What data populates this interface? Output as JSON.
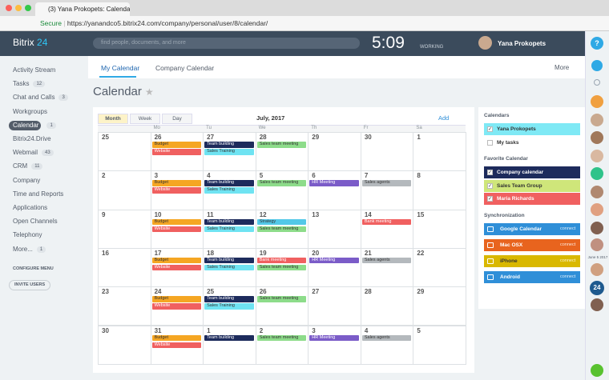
{
  "browser": {
    "tab_title": "(3) Yana Prokopets: Calendar",
    "secure": "Secure",
    "url": "https://yanandco5.bitrix24.com/company/personal/user/8/calendar/"
  },
  "header": {
    "logo_main": "Bitrix",
    "logo_num": "24",
    "search_placeholder": "find people, documents, and more",
    "time": "5:09",
    "status": "WORKING",
    "user": "Yana Prokopets",
    "help": "?"
  },
  "sidebar": {
    "items": [
      {
        "label": "Activity Stream"
      },
      {
        "label": "Tasks",
        "count": 12
      },
      {
        "label": "Chat and Calls",
        "count": 3
      },
      {
        "label": "Workgroups"
      },
      {
        "label": "Calendar",
        "count": 1,
        "active": true
      },
      {
        "label": "Bitrix24.Drive"
      },
      {
        "label": "Webmail",
        "count": 43
      },
      {
        "label": "CRM",
        "count": 11
      },
      {
        "label": "Company"
      },
      {
        "label": "Time and Reports"
      },
      {
        "label": "Applications"
      },
      {
        "label": "Open Channels"
      },
      {
        "label": "Telephony"
      },
      {
        "label": "More...",
        "count": 1
      }
    ],
    "configure": "CONFIGURE MENU",
    "invite": "INVITE USERS"
  },
  "tabs": [
    "My Calendar",
    "Company Calendar"
  ],
  "more": "More",
  "page_title": "Calendar",
  "calendar": {
    "views": [
      "Month",
      "Week",
      "Day"
    ],
    "period": "July, 2017",
    "add": "Add",
    "weekdays": [
      null,
      "Mo",
      "Tu",
      "We",
      "Th",
      "Fr",
      "Sa"
    ],
    "weeks": [
      {
        "days": [
          {
            "num": 25
          },
          {
            "num": 26,
            "events": [
              {
                "title": "Budget",
                "color": "#f5a623"
              },
              {
                "title": "Website",
                "color": "#f06060"
              }
            ]
          },
          {
            "num": 27,
            "events": [
              {
                "title": "Team building",
                "color": "#1d2b5c"
              },
              {
                "title": "Sales Training",
                "color": "#6fe3f2"
              }
            ]
          },
          {
            "num": 28,
            "events": [
              {
                "title": "Sales team meeting",
                "color": "#8ddc8a"
              }
            ]
          },
          {
            "num": 29
          },
          {
            "num": 30
          },
          {
            "num": 1
          }
        ]
      },
      {
        "days": [
          {
            "num": 2
          },
          {
            "num": 3,
            "events": [
              {
                "title": "Budget",
                "color": "#f5a623"
              },
              {
                "title": "Website",
                "color": "#f06060"
              }
            ]
          },
          {
            "num": 4,
            "events": [
              {
                "title": "Team building",
                "color": "#1d2b5c"
              },
              {
                "title": "Sales Training",
                "color": "#6fe3f2"
              }
            ]
          },
          {
            "num": 5,
            "events": [
              {
                "title": "Sales team meeting",
                "color": "#8ddc8a"
              }
            ]
          },
          {
            "num": 6,
            "events": [
              {
                "title": "HR Meeting",
                "color": "#7b5cc8"
              }
            ]
          },
          {
            "num": 7,
            "events": [
              {
                "title": "Sales agents",
                "color": "#b4b9bd"
              }
            ]
          },
          {
            "num": 8
          }
        ]
      },
      {
        "days": [
          {
            "num": 9
          },
          {
            "num": 10,
            "events": [
              {
                "title": "Budget",
                "color": "#f5a623"
              },
              {
                "title": "Website",
                "color": "#f06060"
              }
            ]
          },
          {
            "num": 11,
            "events": [
              {
                "title": "Team building",
                "color": "#1d2b5c"
              },
              {
                "title": "Sales Training",
                "color": "#6fe3f2"
              }
            ]
          },
          {
            "num": 12,
            "events": [
              {
                "title": "Strategy",
                "color": "#52c8e8"
              },
              {
                "title": "Sales team meeting",
                "color": "#8ddc8a"
              }
            ]
          },
          {
            "num": 13
          },
          {
            "num": 14,
            "events": [
              {
                "title": "Bank meeting",
                "color": "#f06060"
              }
            ]
          },
          {
            "num": 15
          }
        ]
      },
      {
        "days": [
          {
            "num": 16
          },
          {
            "num": 17,
            "events": [
              {
                "title": "Budget",
                "color": "#f5a623"
              },
              {
                "title": "Website",
                "color": "#f06060"
              }
            ]
          },
          {
            "num": 18,
            "events": [
              {
                "title": "Team building",
                "color": "#1d2b5c"
              },
              {
                "title": "Sales Training",
                "color": "#6fe3f2"
              }
            ]
          },
          {
            "num": 19,
            "events": [
              {
                "title": "Bank meeting",
                "color": "#f06060"
              },
              {
                "title": "Sales team meeting",
                "color": "#8ddc8a"
              }
            ]
          },
          {
            "num": 20,
            "events": [
              {
                "title": "HR Meeting",
                "color": "#7b5cc8"
              }
            ]
          },
          {
            "num": 21,
            "events": [
              {
                "title": "Sales agents",
                "color": "#b4b9bd"
              }
            ]
          },
          {
            "num": 22
          }
        ]
      },
      {
        "days": [
          {
            "num": 23
          },
          {
            "num": 24,
            "events": [
              {
                "title": "Budget",
                "color": "#f5a623"
              },
              {
                "title": "Website",
                "color": "#f06060"
              }
            ]
          },
          {
            "num": 25,
            "events": [
              {
                "title": "Team building",
                "color": "#1d2b5c"
              },
              {
                "title": "Sales Training",
                "color": "#6fe3f2"
              }
            ]
          },
          {
            "num": 26,
            "events": [
              {
                "title": "Sales team meeting",
                "color": "#8ddc8a"
              }
            ]
          },
          {
            "num": 27
          },
          {
            "num": 28
          },
          {
            "num": 29
          }
        ]
      },
      {
        "days": [
          {
            "num": 30
          },
          {
            "num": 31,
            "events": [
              {
                "title": "Budget",
                "color": "#f5a623"
              },
              {
                "title": "Website",
                "color": "#f06060"
              }
            ]
          },
          {
            "num": 1,
            "events": [
              {
                "title": "Team building",
                "color": "#1d2b5c"
              }
            ]
          },
          {
            "num": 2,
            "events": [
              {
                "title": "Sales team meeting",
                "color": "#8ddc8a"
              }
            ]
          },
          {
            "num": 3,
            "events": [
              {
                "title": "HR Meeting",
                "color": "#7b5cc8"
              }
            ]
          },
          {
            "num": 4,
            "events": [
              {
                "title": "Sales agents",
                "color": "#b4b9bd"
              }
            ]
          },
          {
            "num": 5
          }
        ]
      }
    ]
  },
  "panel": {
    "calendars_title": "Calendars",
    "calendars": [
      {
        "label": "Yana Prokopets",
        "color": "#7fe9f5",
        "checked": true
      },
      {
        "label": "My tasks",
        "checked": false
      }
    ],
    "favorite_title": "Favorite Calendar",
    "favorites": [
      {
        "label": "Company calendar",
        "color": "#1d2b5c",
        "checked": true
      },
      {
        "label": "Sales Team Group",
        "color": "#cfe67a",
        "checked": true
      },
      {
        "label": "Maria Richards",
        "color": "#f06060",
        "checked": true
      }
    ],
    "sync_title": "Synchronization",
    "sync": [
      {
        "label": "Google Calendar",
        "action": "connect",
        "color": "#2f8fd8"
      },
      {
        "label": "Mac OSX",
        "action": "connect",
        "color": "#e8641e"
      },
      {
        "label": "iPhone",
        "action": "connect",
        "color": "#d9b800"
      },
      {
        "label": "Android",
        "action": "connect",
        "color": "#2f8fd8"
      }
    ]
  },
  "rightbar": {
    "badge": "24",
    "date_note": "June 5 2017"
  }
}
